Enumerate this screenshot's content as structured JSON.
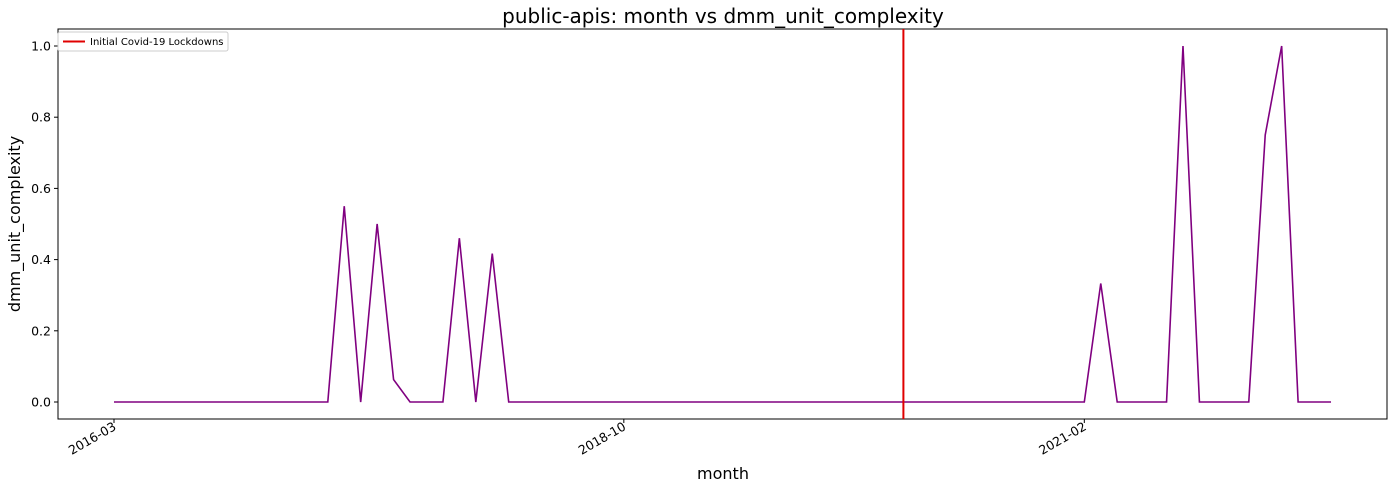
{
  "chart_data": {
    "type": "line",
    "title": "public-apis: month vs dmm_unit_complexity",
    "xlabel": "month",
    "ylabel": "dmm_unit_complexity",
    "x_start": "2016-03",
    "x_end": "2022-05",
    "ylim": [
      -0.05,
      1.05
    ],
    "yticks": [
      "0.0",
      "0.2",
      "0.4",
      "0.6",
      "0.8",
      "1.0"
    ],
    "xticks": [
      {
        "label": "2016-03",
        "value": "2016-03"
      },
      {
        "label": "2018-10",
        "value": "2018-10"
      },
      {
        "label": "2021-02",
        "value": "2021-02"
      }
    ],
    "grid": false,
    "legend_location": "upper left",
    "series": [
      {
        "name": "",
        "color": "#800080",
        "points": [
          {
            "x": "2016-03",
            "y": 0.0
          },
          {
            "x": "2017-04",
            "y": 0.0
          },
          {
            "x": "2017-05",
            "y": 0.55
          },
          {
            "x": "2017-06",
            "y": 0.0
          },
          {
            "x": "2017-07",
            "y": 0.5
          },
          {
            "x": "2017-08",
            "y": 0.063
          },
          {
            "x": "2017-09",
            "y": 0.0
          },
          {
            "x": "2017-11",
            "y": 0.0
          },
          {
            "x": "2017-12",
            "y": 0.46
          },
          {
            "x": "2018-01",
            "y": 0.0
          },
          {
            "x": "2018-02",
            "y": 0.417
          },
          {
            "x": "2018-03",
            "y": 0.0
          },
          {
            "x": "2021-02",
            "y": 0.0
          },
          {
            "x": "2021-03",
            "y": 0.333
          },
          {
            "x": "2021-04",
            "y": 0.0
          },
          {
            "x": "2021-07",
            "y": 0.0
          },
          {
            "x": "2021-08",
            "y": 1.0
          },
          {
            "x": "2021-09",
            "y": 0.0
          },
          {
            "x": "2021-12",
            "y": 0.0
          },
          {
            "x": "2022-01",
            "y": 0.75
          },
          {
            "x": "2022-02",
            "y": 1.0
          },
          {
            "x": "2022-03",
            "y": 0.0
          },
          {
            "x": "2022-05",
            "y": 0.0
          }
        ]
      }
    ],
    "annotations": [
      {
        "type": "vline",
        "label": "Initial Covid-19 Lockdowns",
        "x": "2020-03",
        "color": "#e00000"
      }
    ]
  }
}
